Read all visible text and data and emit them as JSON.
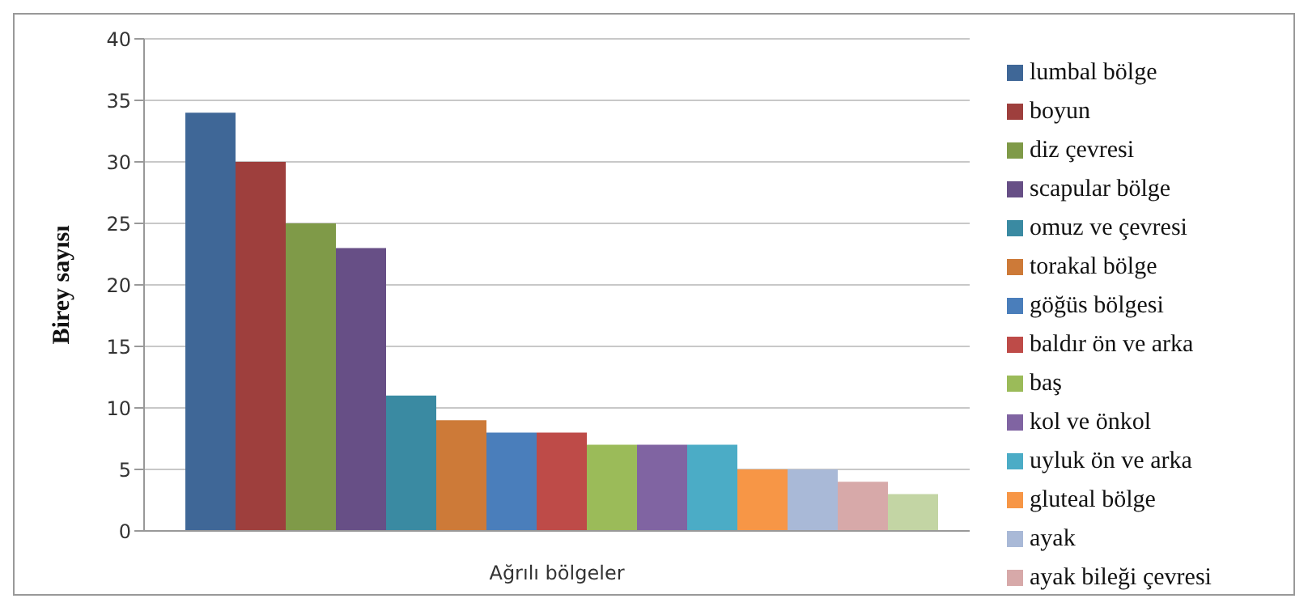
{
  "chart_data": {
    "type": "bar",
    "xlabel": "Ağrılı bölgeler",
    "ylabel": "Birey sayısı",
    "categories": [
      null
    ],
    "series": [
      {
        "name": "lumbal bölge",
        "color": "#3f6797",
        "values": [
          34
        ]
      },
      {
        "name": "boyun",
        "color": "#9e3f3d",
        "values": [
          30
        ]
      },
      {
        "name": "diz çevresi",
        "color": "#7f9a48",
        "values": [
          25
        ]
      },
      {
        "name": "scapular bölge",
        "color": "#674f86",
        "values": [
          23
        ]
      },
      {
        "name": "omuz ve çevresi",
        "color": "#3a8aa2",
        "values": [
          11
        ]
      },
      {
        "name": "torakal bölge",
        "color": "#cd7a38",
        "values": [
          9
        ]
      },
      {
        "name": "göğüs bölgesi",
        "color": "#4a7ebb",
        "values": [
          8
        ]
      },
      {
        "name": "baldır ön ve arka",
        "color": "#be4b48",
        "values": [
          8
        ]
      },
      {
        "name": "baş",
        "color": "#9bbb59",
        "values": [
          7
        ]
      },
      {
        "name": "kol ve önkol",
        "color": "#8064a2",
        "values": [
          7
        ]
      },
      {
        "name": "uyluk ön ve arka",
        "color": "#4bacc6",
        "values": [
          7
        ]
      },
      {
        "name": "gluteal bölge",
        "color": "#f79646",
        "values": [
          5
        ]
      },
      {
        "name": "ayak",
        "color": "#a9b9d7",
        "values": [
          5
        ]
      },
      {
        "name": "ayak bileği çevresi",
        "color": "#d7a9a9",
        "values": [
          4
        ]
      },
      {
        "color": "#c3d5a4",
        "values": [
          3
        ]
      }
    ],
    "ylim": [
      0,
      40
    ],
    "yticks": [
      0,
      5,
      10,
      15,
      20,
      25,
      30,
      35,
      40
    ],
    "grid": "y",
    "legend": "right"
  }
}
